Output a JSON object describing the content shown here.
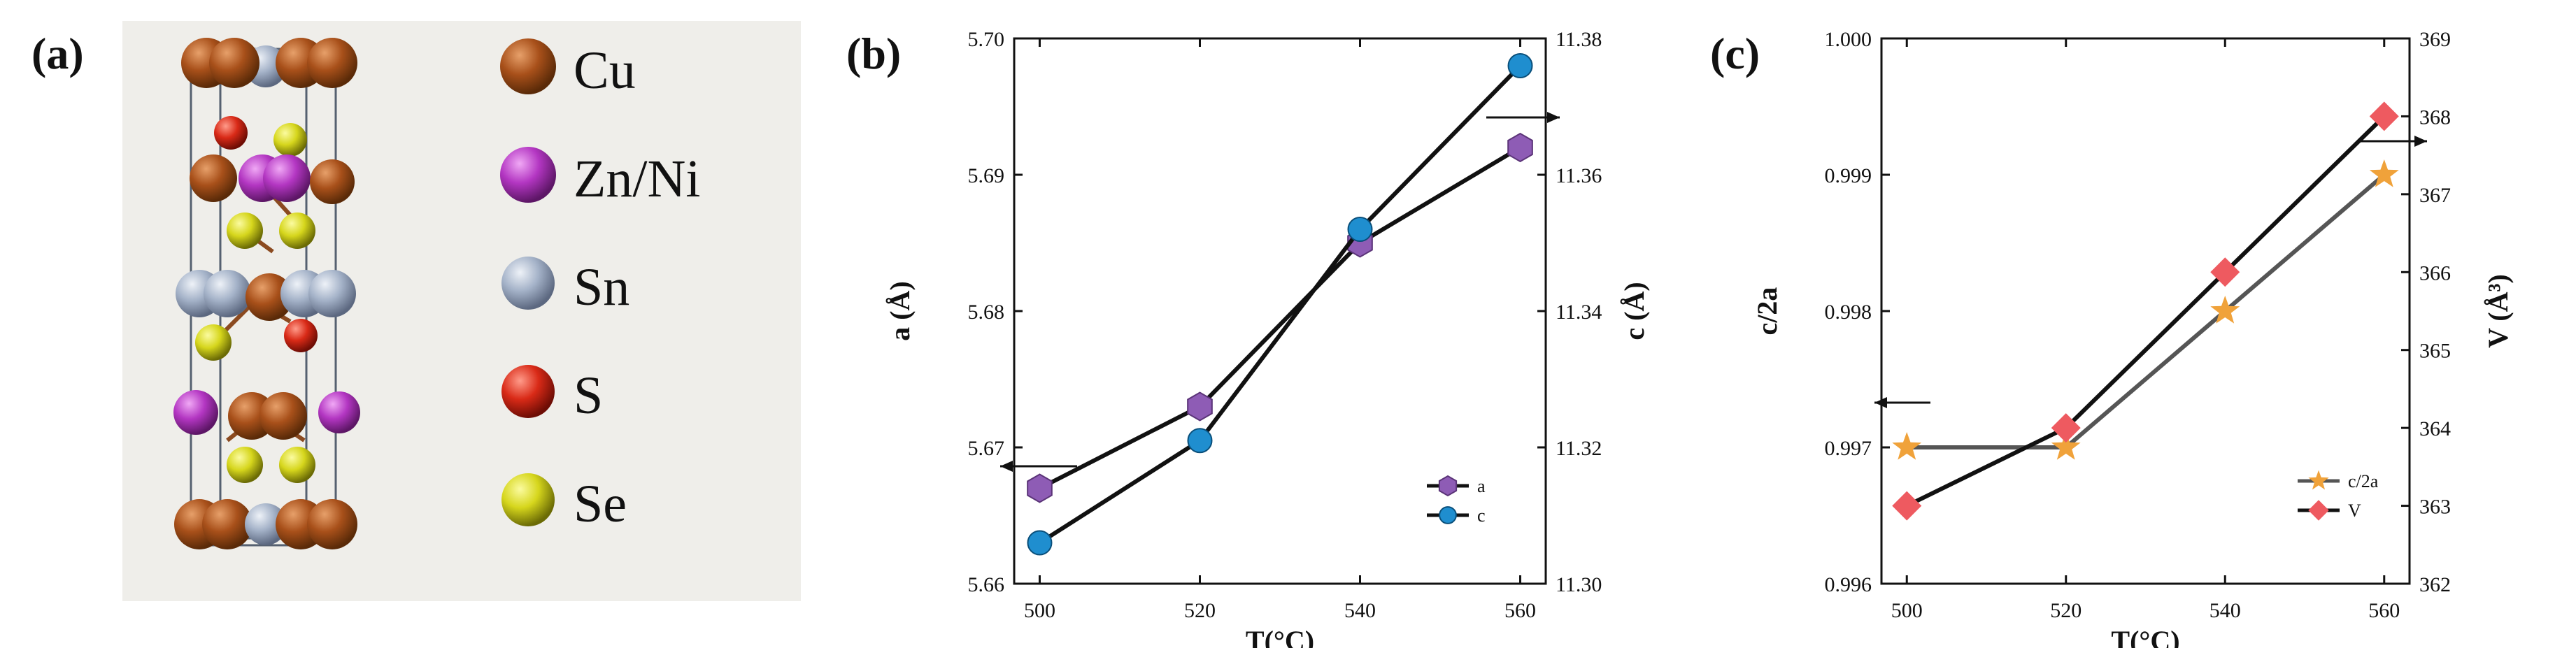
{
  "panels": {
    "a": "(a)",
    "b": "(b)",
    "c": "(c)"
  },
  "colors": {
    "Cu": "#a8501a",
    "Zn_Ni": "#b336c2",
    "Sn": "#a4b2c8",
    "S": "#d92a17",
    "Se": "#d6d61c",
    "a_marker": "#8e5cb5",
    "c_marker": "#1f8ecf",
    "star": "#f0a23a",
    "diamond": "#ee5a60",
    "line": "#111111"
  },
  "structure_legend": [
    {
      "label": "Cu",
      "color": "#a8501a"
    },
    {
      "label": "Zn/Ni",
      "color": "#b336c2"
    },
    {
      "label": "Sn",
      "color": "#a4b2c8"
    },
    {
      "label": "S",
      "color": "#d92a17"
    },
    {
      "label": "Se",
      "color": "#d6d61c"
    }
  ],
  "chart_data": [
    {
      "type": "line",
      "panel": "(b)",
      "x": [
        500,
        520,
        540,
        560
      ],
      "xticks": [
        "500",
        "520",
        "540",
        "560"
      ],
      "xlabel": "T(°C)",
      "ylabel_left": "a (Å)",
      "ylabel_right": "c (Å)",
      "ylim_left": [
        5.66,
        5.7
      ],
      "ylim_right": [
        11.3,
        11.38
      ],
      "yticks_left": [
        "5.66",
        "5.67",
        "5.68",
        "5.69",
        "5.70"
      ],
      "yticks_right": [
        "11.30",
        "11.32",
        "11.34",
        "11.36",
        "11.38"
      ],
      "series": [
        {
          "name": "a",
          "axis": "left",
          "marker": "hexagon",
          "values": [
            5.667,
            5.673,
            5.685,
            5.692
          ]
        },
        {
          "name": "c",
          "axis": "right",
          "marker": "circle",
          "values": [
            11.306,
            11.321,
            11.352,
            11.376
          ]
        }
      ],
      "legend_position": "bottom-right"
    },
    {
      "type": "line",
      "panel": "(c)",
      "x": [
        500,
        520,
        540,
        560
      ],
      "xticks": [
        "500",
        "520",
        "540",
        "560"
      ],
      "xlabel": "T(°C)",
      "ylabel_left": "c/2a",
      "ylabel_right": "V (Å³)",
      "ylim_left": [
        0.996,
        1.0
      ],
      "ylim_right": [
        362,
        369
      ],
      "yticks_left": [
        "0.996",
        "0.997",
        "0.998",
        "0.999",
        "1.000"
      ],
      "yticks_right": [
        "362",
        "363",
        "364",
        "365",
        "366",
        "367",
        "368",
        "369"
      ],
      "series": [
        {
          "name": "c/2a",
          "axis": "left",
          "marker": "star",
          "values": [
            0.997,
            0.997,
            0.998,
            0.999
          ]
        },
        {
          "name": "V",
          "axis": "right",
          "marker": "diamond",
          "values": [
            363.0,
            364.0,
            366.0,
            368.0
          ]
        }
      ],
      "legend_position": "bottom-right"
    }
  ]
}
